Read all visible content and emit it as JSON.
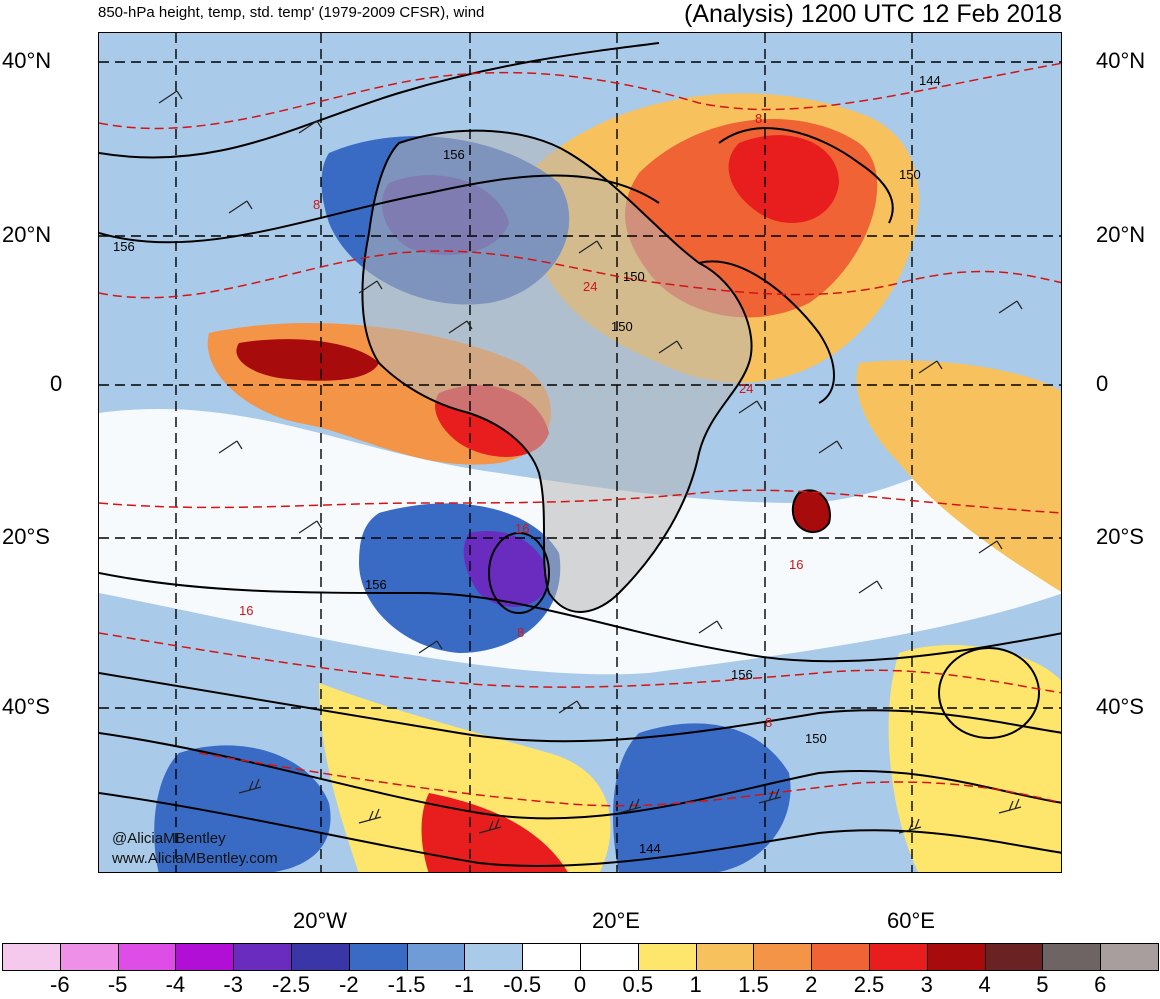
{
  "header": {
    "title_left": "850-hPa height, temp, std. temp' (1979-2009 CFSR), wind",
    "title_right": "(Analysis) 1200 UTC 12 Feb 2018"
  },
  "axes": {
    "lat_labels": [
      "40°N",
      "20°N",
      "0",
      "20°S",
      "40°S"
    ],
    "lon_labels": [
      "20°W",
      "20°E",
      "60°E"
    ]
  },
  "contours": {
    "height_labels": [
      "156",
      "156",
      "150",
      "150",
      "144",
      "150",
      "156",
      "156",
      "150",
      "144"
    ],
    "temp_labels": [
      "8",
      "8",
      "24",
      "24",
      "16",
      "16",
      "8",
      "16",
      "8"
    ]
  },
  "watermark": {
    "line1": "@AliciaMBentley",
    "line2": "www.AliciaMBentley.com"
  },
  "colorbar": {
    "colors": [
      "#f5c9ee",
      "#ee8fe8",
      "#de4de6",
      "#b10fd6",
      "#6a2cbf",
      "#3a36a8",
      "#3a6bc4",
      "#6f9bd6",
      "#a9cbe9",
      "#ffffff",
      "#ffffff",
      "#fde66b",
      "#f7c25d",
      "#f39447",
      "#ef6335",
      "#e81d1d",
      "#a80b0b",
      "#6b2222",
      "#6f6464",
      "#a89e9e"
    ],
    "labels": [
      "-6",
      "-5",
      "-4",
      "-3",
      "-2.5",
      "-2",
      "-1.5",
      "-1",
      "-0.5",
      "0",
      "0.5",
      "1",
      "1.5",
      "2",
      "2.5",
      "3",
      "4",
      "5",
      "6"
    ]
  }
}
